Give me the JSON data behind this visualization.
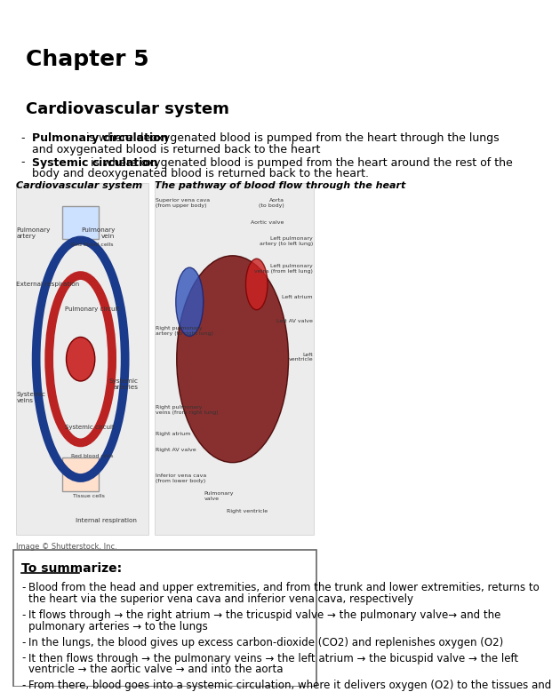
{
  "title": "Chapter 5",
  "section1": "Cardiovascular system",
  "bullet1_bold": "Pulmonary circulation",
  "bullet1_rest": " is where deoxygenated blood is pumped from the heart through the lungs",
  "bullet1_line2": "and oxygenated blood is returned back to the heart",
  "bullet2_bold": "Systemic circulation",
  "bullet2_rest": " is where oxygenated blood is pumped from the heart around the rest of the",
  "bullet2_line2": "body and deoxygenated blood is returned back to the heart.",
  "img_caption_left": "Cardiovascular system",
  "img_caption_right": "The pathway of blood flow through the heart",
  "img_credit": "Image © Shutterstock, Inc.",
  "summary_title": "To summarize:",
  "summary_bullets": [
    "Blood from the head and upper extremities, and from the trunk and lower extremities, returns to\nthe heart via the superior vena cava and inferior vena cava, respectively",
    "It flows through → the right atrium → the tricuspid valve → the pulmonary valve→ and the\npulmonary arteries → to the lungs",
    "In the lungs, the blood gives up excess carbon-dioxide (CO2) and replenishes oxygen (O2)",
    "It then flows through → the pulmonary veins → the left atrium → the bicuspid valve → the left\nventricle → the aortic valve → and into the aorta",
    "From there, blood goes into a systemic circulation, where it delivers oxygen (O2) to the tissues and"
  ],
  "bg_color": "#ffffff",
  "text_color": "#000000",
  "box_border_color": "#666666",
  "font_size_title": 18,
  "font_size_section": 13,
  "font_size_body": 9,
  "font_size_caption": 8,
  "font_size_summary": 8.5
}
